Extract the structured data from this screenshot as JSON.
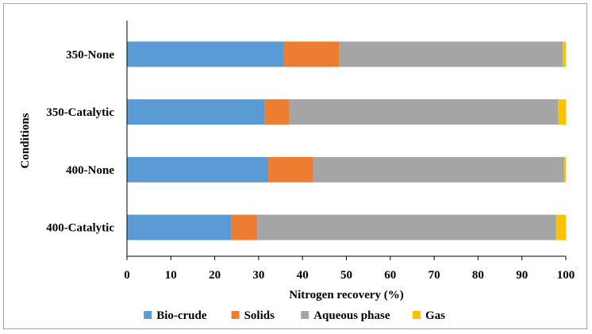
{
  "chart_data": {
    "type": "bar",
    "orientation": "horizontal",
    "stacked": true,
    "categories": [
      "350-None",
      "350-Catalytic",
      "400-None",
      "400-Catalytic"
    ],
    "series": [
      {
        "name": "Bio-crude",
        "color": "#5b9bd5",
        "values": [
          35.8,
          31.4,
          32.2,
          23.7
        ]
      },
      {
        "name": "Solids",
        "color": "#ed7d31",
        "values": [
          12.6,
          5.6,
          10.2,
          6.0
        ]
      },
      {
        "name": "Aqueous phase",
        "color": "#a5a5a5",
        "values": [
          50.9,
          61.2,
          57.2,
          68.1
        ]
      },
      {
        "name": "Gas",
        "color": "#ffc000",
        "values": [
          0.7,
          1.8,
          0.4,
          2.2
        ]
      }
    ],
    "xlabel": "Nitrogen recovery (%)",
    "ylabel": "Conditions",
    "xlim": [
      0,
      100
    ],
    "xticks": [
      "0",
      "10",
      "20",
      "30",
      "40",
      "50",
      "60",
      "70",
      "80",
      "90",
      "100"
    ],
    "grid": false,
    "legend_position": "bottom"
  }
}
